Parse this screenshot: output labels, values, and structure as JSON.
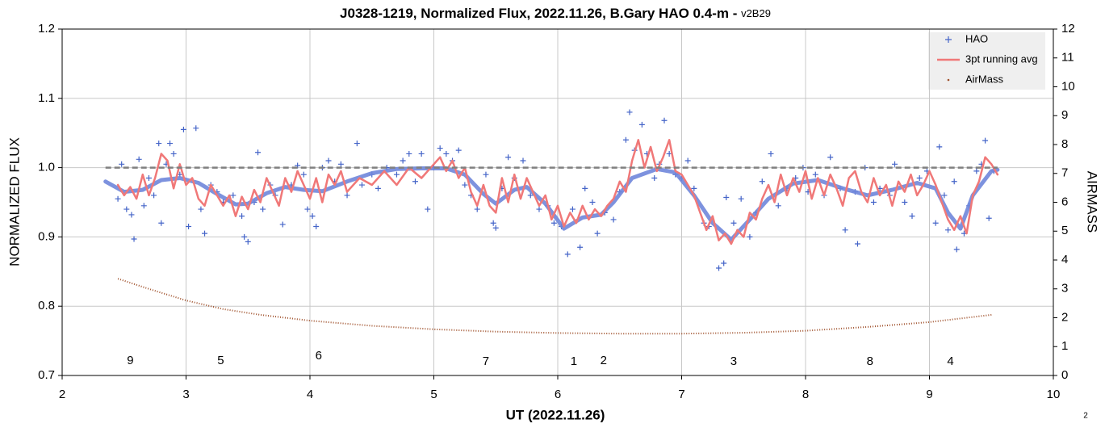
{
  "chart_data": {
    "type": "scatter",
    "title": "J0328-1219, Normalized Flux, 2022.11.26, B.Gary HAO 0.4-m - ",
    "subtitle": "v2B29",
    "x_label": "UT (2022.11.26)",
    "y_label": "NORMALIZED FLUX",
    "y2_label": "AIRMASS",
    "footnote": "2",
    "xlim": [
      2,
      10
    ],
    "xticks": [
      2,
      3,
      4,
      5,
      6,
      7,
      8,
      9,
      10
    ],
    "ylim": [
      0.7,
      1.2
    ],
    "yticks": [
      0.7,
      0.8,
      0.9,
      {
        "value": 1,
        "label": "1.0"
      },
      1.1,
      1.2
    ],
    "y2lim": [
      0,
      12
    ],
    "y2ticks": [
      0,
      1,
      2,
      3,
      4,
      5,
      6,
      7,
      8,
      9,
      10,
      11,
      12
    ],
    "grid": true,
    "legend": "top-right",
    "series": [
      {
        "name": "HAO",
        "color": "#4464c8",
        "style": "markers",
        "x": [
          2.45,
          2.48,
          2.52,
          2.56,
          2.58,
          2.62,
          2.66,
          2.7,
          2.74,
          2.78,
          2.8,
          2.84,
          2.87,
          2.9,
          2.95,
          2.98,
          3.02,
          3.08,
          3.12,
          3.15,
          3.2,
          3.25,
          3.3,
          3.38,
          3.45,
          3.47,
          3.5,
          3.55,
          3.58,
          3.62,
          3.68,
          3.72,
          3.78,
          3.85,
          3.9,
          3.95,
          3.98,
          4.02,
          4.05,
          4.1,
          4.15,
          4.2,
          4.25,
          4.3,
          4.38,
          4.42,
          4.5,
          4.55,
          4.62,
          4.7,
          4.75,
          4.8,
          4.85,
          4.9,
          4.95,
          5.0,
          5.05,
          5.1,
          5.15,
          5.2,
          5.25,
          5.3,
          5.35,
          5.42,
          5.48,
          5.5,
          5.55,
          5.6,
          5.65,
          5.72,
          5.78,
          5.85,
          5.92,
          5.97,
          6.03,
          6.08,
          6.12,
          6.18,
          6.22,
          6.28,
          6.32,
          6.38,
          6.45,
          6.5,
          6.55,
          6.58,
          6.62,
          6.68,
          6.72,
          6.78,
          6.82,
          6.86,
          6.9,
          6.95,
          7.0,
          7.05,
          7.1,
          7.18,
          7.22,
          7.3,
          7.34,
          7.36,
          7.42,
          7.48,
          7.55,
          7.6,
          7.65,
          7.72,
          7.78,
          7.85,
          7.92,
          7.98,
          8.02,
          8.08,
          8.15,
          8.2,
          8.28,
          8.32,
          8.4,
          8.42,
          8.48,
          8.55,
          8.6,
          8.68,
          8.72,
          8.8,
          8.86,
          8.92,
          8.98,
          9.05,
          9.08,
          9.12,
          9.15,
          9.2,
          9.22,
          9.28,
          9.32,
          9.38,
          9.42,
          9.45,
          9.48,
          9.52
        ],
        "values": [
          0.955,
          1.005,
          0.94,
          0.932,
          0.897,
          1.012,
          0.945,
          0.985,
          0.96,
          1.035,
          0.92,
          1.005,
          1.035,
          1.02,
          0.99,
          1.055,
          0.915,
          1.057,
          0.94,
          0.905,
          0.975,
          0.965,
          0.95,
          0.96,
          0.93,
          0.9,
          0.893,
          0.95,
          1.022,
          0.94,
          0.975,
          0.96,
          0.918,
          0.975,
          1.003,
          0.99,
          0.94,
          0.93,
          0.915,
          1.0,
          1.01,
          0.98,
          1.005,
          0.96,
          1.035,
          0.975,
          0.99,
          0.97,
          1.0,
          0.99,
          1.01,
          1.02,
          0.98,
          1.02,
          0.94,
          1.0,
          1.028,
          1.02,
          1.01,
          1.025,
          0.975,
          0.96,
          0.94,
          0.99,
          0.92,
          0.913,
          0.97,
          1.015,
          0.985,
          1.01,
          0.96,
          0.94,
          0.945,
          0.92,
          0.915,
          0.875,
          0.94,
          0.885,
          0.97,
          0.95,
          0.905,
          0.935,
          0.925,
          0.965,
          1.04,
          1.08,
          1.025,
          1.062,
          1.02,
          0.985,
          1.005,
          1.068,
          1.02,
          0.99,
          0.985,
          1.01,
          0.97,
          0.92,
          0.915,
          0.855,
          0.862,
          0.957,
          0.92,
          0.955,
          0.9,
          0.935,
          0.98,
          1.02,
          0.945,
          0.97,
          0.985,
          1.0,
          0.965,
          0.99,
          0.96,
          1.015,
          0.97,
          0.91,
          0.965,
          0.89,
          1.0,
          0.95,
          0.97,
          0.96,
          1.005,
          0.95,
          0.93,
          0.985,
          0.995,
          0.92,
          1.03,
          0.96,
          0.91,
          0.98,
          0.882,
          0.905,
          0.945,
          0.995,
          1.005,
          1.039,
          0.927,
          0.995
        ]
      },
      {
        "name": "3pt running avg",
        "color": "#f07878",
        "style": "line",
        "x": [
          2.45,
          2.5,
          2.55,
          2.6,
          2.65,
          2.7,
          2.75,
          2.8,
          2.85,
          2.9,
          2.95,
          3.0,
          3.05,
          3.1,
          3.15,
          3.2,
          3.25,
          3.3,
          3.35,
          3.4,
          3.45,
          3.5,
          3.55,
          3.6,
          3.65,
          3.7,
          3.75,
          3.8,
          3.85,
          3.9,
          3.95,
          4.0,
          4.05,
          4.1,
          4.15,
          4.2,
          4.25,
          4.3,
          4.4,
          4.5,
          4.6,
          4.7,
          4.8,
          4.9,
          5.0,
          5.05,
          5.1,
          5.15,
          5.2,
          5.25,
          5.3,
          5.35,
          5.4,
          5.45,
          5.5,
          5.55,
          5.6,
          5.65,
          5.7,
          5.75,
          5.8,
          5.85,
          5.9,
          5.95,
          6.0,
          6.05,
          6.1,
          6.15,
          6.2,
          6.25,
          6.3,
          6.35,
          6.4,
          6.45,
          6.5,
          6.55,
          6.6,
          6.65,
          6.7,
          6.75,
          6.8,
          6.85,
          6.9,
          6.95,
          7.0,
          7.05,
          7.1,
          7.15,
          7.2,
          7.25,
          7.3,
          7.35,
          7.4,
          7.45,
          7.5,
          7.55,
          7.6,
          7.65,
          7.7,
          7.75,
          7.8,
          7.85,
          7.9,
          7.95,
          8.0,
          8.05,
          8.1,
          8.15,
          8.2,
          8.25,
          8.3,
          8.35,
          8.4,
          8.45,
          8.5,
          8.55,
          8.6,
          8.65,
          8.7,
          8.75,
          8.8,
          8.85,
          8.9,
          8.95,
          9.0,
          9.05,
          9.1,
          9.15,
          9.2,
          9.25,
          9.3,
          9.35,
          9.4,
          9.45,
          9.5,
          9.55
        ],
        "values": [
          0.975,
          0.96,
          0.972,
          0.955,
          0.99,
          0.96,
          0.985,
          1.02,
          1.01,
          0.97,
          1.005,
          0.975,
          0.985,
          0.955,
          0.945,
          0.975,
          0.96,
          0.945,
          0.96,
          0.93,
          0.958,
          0.94,
          0.968,
          0.95,
          0.985,
          0.965,
          0.945,
          0.985,
          0.965,
          0.995,
          0.975,
          0.955,
          0.985,
          0.95,
          0.99,
          0.975,
          0.995,
          0.965,
          0.985,
          0.975,
          0.995,
          0.975,
          1.0,
          0.985,
          1.005,
          1.015,
          0.995,
          1.01,
          0.985,
          1.0,
          0.965,
          0.945,
          0.975,
          0.945,
          0.935,
          0.985,
          0.95,
          0.99,
          0.955,
          0.985,
          0.965,
          0.945,
          0.96,
          0.925,
          0.945,
          0.915,
          0.935,
          0.92,
          0.945,
          0.925,
          0.94,
          0.93,
          0.945,
          0.955,
          0.98,
          0.965,
          1.01,
          1.04,
          1.0,
          1.03,
          0.995,
          1.015,
          1.04,
          0.995,
          0.99,
          0.975,
          0.96,
          0.935,
          0.91,
          0.93,
          0.895,
          0.905,
          0.89,
          0.91,
          0.9,
          0.935,
          0.925,
          0.955,
          0.975,
          0.95,
          0.99,
          0.96,
          0.985,
          0.965,
          0.995,
          0.955,
          0.985,
          0.96,
          0.99,
          0.97,
          0.945,
          0.985,
          0.995,
          0.965,
          0.95,
          0.985,
          0.96,
          0.975,
          0.945,
          0.98,
          0.965,
          0.99,
          0.96,
          0.975,
          0.995,
          0.975,
          0.95,
          0.925,
          0.91,
          0.93,
          0.905,
          0.96,
          0.98,
          1.015,
          1.005,
          0.99
        ]
      },
      {
        "color": "#6f86da",
        "style": "thick",
        "x": [
          2.35,
          2.5,
          2.65,
          2.8,
          2.95,
          3.1,
          3.25,
          3.4,
          3.5,
          3.65,
          3.8,
          3.95,
          4.1,
          4.3,
          4.5,
          4.7,
          4.9,
          5.1,
          5.25,
          5.4,
          5.5,
          5.65,
          5.75,
          5.9,
          6.05,
          6.2,
          6.35,
          6.45,
          6.6,
          6.8,
          6.95,
          7.1,
          7.25,
          7.4,
          7.55,
          7.7,
          7.9,
          8.1,
          8.3,
          8.5,
          8.7,
          8.9,
          9.05,
          9.15,
          9.25,
          9.35,
          9.5,
          9.55
        ],
        "values": [
          0.98,
          0.965,
          0.968,
          0.982,
          0.985,
          0.978,
          0.962,
          0.947,
          0.948,
          0.963,
          0.972,
          0.968,
          0.966,
          0.98,
          0.992,
          0.998,
          0.999,
          0.999,
          0.99,
          0.962,
          0.948,
          0.968,
          0.972,
          0.948,
          0.912,
          0.928,
          0.932,
          0.95,
          0.985,
          0.998,
          0.993,
          0.96,
          0.92,
          0.896,
          0.925,
          0.955,
          0.977,
          0.982,
          0.97,
          0.96,
          0.968,
          0.978,
          0.97,
          0.935,
          0.912,
          0.96,
          0.995,
          0.997
        ]
      },
      {
        "color": "#808080",
        "style": "dashed",
        "x": [
          2.35,
          9.55
        ],
        "values": [
          1,
          1
        ]
      },
      {
        "name": "AirMass",
        "color": "#a0522d",
        "style": "dots",
        "axis": "y2",
        "x": [
          2.45,
          2.7,
          3.0,
          3.3,
          3.6,
          4.0,
          4.5,
          5.0,
          5.5,
          6.0,
          6.5,
          7.0,
          7.5,
          8.0,
          8.5,
          9.0,
          9.5
        ],
        "values": [
          3.35,
          3.0,
          2.6,
          2.3,
          2.1,
          1.9,
          1.72,
          1.6,
          1.52,
          1.47,
          1.45,
          1.45,
          1.48,
          1.55,
          1.68,
          1.85,
          2.1
        ]
      }
    ],
    "annotations": [
      {
        "text": "9",
        "x": 2.55,
        "y": 0.721
      },
      {
        "text": "5",
        "x": 3.28,
        "y": 0.721
      },
      {
        "text": "6",
        "x": 4.07,
        "y": 0.728
      },
      {
        "text": "7",
        "x": 5.42,
        "y": 0.72
      },
      {
        "text": "1",
        "x": 6.13,
        "y": 0.72
      },
      {
        "text": "2",
        "x": 6.37,
        "y": 0.721
      },
      {
        "text": "3",
        "x": 7.42,
        "y": 0.72
      },
      {
        "text": "8",
        "x": 8.52,
        "y": 0.72
      },
      {
        "text": "4",
        "x": 9.17,
        "y": 0.72
      }
    ]
  }
}
